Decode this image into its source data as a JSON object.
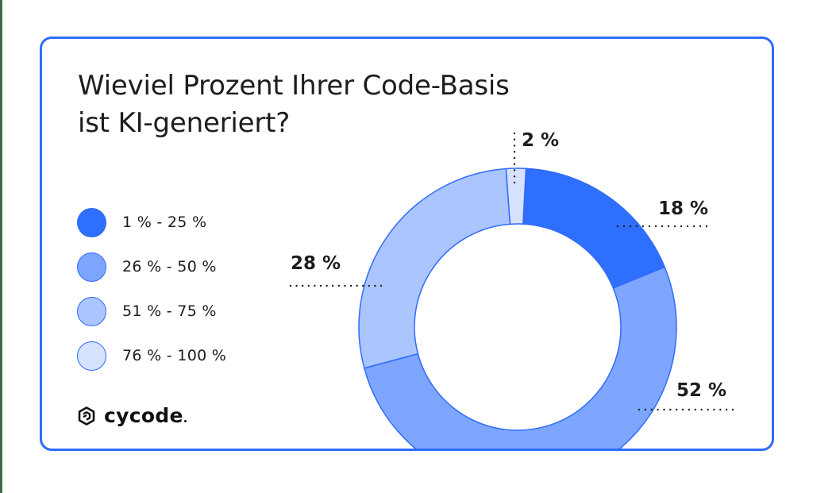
{
  "title": {
    "line1": "Wieviel Prozent Ihrer Code-Basis",
    "line2": "ist KI-generiert?"
  },
  "legend": {
    "items": [
      {
        "label": "1 % - 25 %",
        "color": "#2f6fff"
      },
      {
        "label": "26 % - 50 %",
        "color": "#7ea6ff"
      },
      {
        "label": "51 % - 75 %",
        "color": "#abc5ff"
      },
      {
        "label": "76 % - 100 %",
        "color": "#d6e2ff"
      }
    ]
  },
  "labels": {
    "seg1": "18 %",
    "seg2": "52 %",
    "seg3": "28 %",
    "seg4": "2 %"
  },
  "logo": {
    "text": "cycode",
    "icon": "cycode-hexagon-logo-icon"
  },
  "colors": {
    "border": "#2f6bff",
    "text": "#1d1d1f",
    "strip": "#3e6b4a"
  },
  "chart_data": {
    "type": "pie",
    "variant": "donut",
    "title": "Wieviel Prozent Ihrer Code-Basis ist KI-generiert?",
    "categories": [
      "1 % - 25 %",
      "26 % - 50 %",
      "51 % - 75 %",
      "76 % - 100 %"
    ],
    "values": [
      18,
      52,
      28,
      2
    ],
    "unit": "%",
    "colors": [
      "#2f6fff",
      "#7ea6ff",
      "#abc5ff",
      "#d6e2ff"
    ],
    "data_labels": [
      "18 %",
      "52 %",
      "28 %",
      "2 %"
    ],
    "legend_position": "left",
    "start_angle_deg": 3,
    "direction": "clockwise"
  }
}
